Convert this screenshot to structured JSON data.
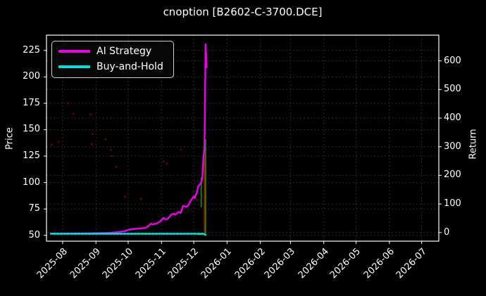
{
  "chart_data": {
    "type": "line",
    "title": "cnoption [B2602-C-3700.DCE]",
    "background_color": "#000000",
    "text_color": "#ffffff",
    "spine_color": "#ffffff",
    "grid": {
      "show": true,
      "color": "#2e2e2e",
      "style": "dashed"
    },
    "x_range": [
      "2025-07-17",
      "2026-07-17"
    ],
    "x_ticks": [
      {
        "date": "2025-08-01",
        "label": "2025-08"
      },
      {
        "date": "2025-09-01",
        "label": "2025-09"
      },
      {
        "date": "2025-10-01",
        "label": "2025-10"
      },
      {
        "date": "2025-11-01",
        "label": "2025-11"
      },
      {
        "date": "2025-12-01",
        "label": "2025-12"
      },
      {
        "date": "2026-01-01",
        "label": "2026-01"
      },
      {
        "date": "2026-02-01",
        "label": "2026-02"
      },
      {
        "date": "2026-03-01",
        "label": "2026-03"
      },
      {
        "date": "2026-04-01",
        "label": "2026-04"
      },
      {
        "date": "2026-05-01",
        "label": "2026-05"
      },
      {
        "date": "2026-06-01",
        "label": "2026-06"
      },
      {
        "date": "2026-07-01",
        "label": "2026-07"
      }
    ],
    "left_axis": {
      "label": "Price",
      "ticks": [
        50,
        75,
        100,
        125,
        150,
        175,
        200,
        225
      ],
      "range": [
        44.5,
        239.5
      ]
    },
    "right_axis": {
      "label": "Return",
      "ticks": [
        0,
        100,
        200,
        300,
        400,
        500,
        600
      ],
      "range": [
        -30,
        690
      ]
    },
    "legend": {
      "position": "upper-left",
      "items": [
        {
          "label": "AI Strategy",
          "color": "#ee00ee"
        },
        {
          "label": "Buy-and-Hold",
          "color": "#00e0e0"
        }
      ]
    },
    "series": [
      {
        "name": "AI Strategy",
        "color": "#ee00ee",
        "width": 2.4,
        "axis": "left",
        "points": [
          [
            "2025-07-21",
            51.6
          ],
          [
            "2025-08-20",
            51.8
          ],
          [
            "2025-09-01",
            52.0
          ],
          [
            "2025-09-12",
            52.3
          ],
          [
            "2025-09-22",
            53.0
          ],
          [
            "2025-09-28",
            54.0
          ],
          [
            "2025-10-02",
            55.5
          ],
          [
            "2025-10-08",
            56.2
          ],
          [
            "2025-10-14",
            56.6
          ],
          [
            "2025-10-17",
            57.2
          ],
          [
            "2025-10-20",
            58.8
          ],
          [
            "2025-10-22",
            61.0
          ],
          [
            "2025-10-24",
            60.3
          ],
          [
            "2025-10-28",
            61.5
          ],
          [
            "2025-10-31",
            63.5
          ],
          [
            "2025-11-03",
            66.5
          ],
          [
            "2025-11-05",
            65.2
          ],
          [
            "2025-11-07",
            65.8
          ],
          [
            "2025-11-10",
            69.5
          ],
          [
            "2025-11-12",
            70.6
          ],
          [
            "2025-11-14",
            69.6
          ],
          [
            "2025-11-17",
            72.2
          ],
          [
            "2025-11-19",
            71.2
          ],
          [
            "2025-11-21",
            78.0
          ],
          [
            "2025-11-24",
            77.0
          ],
          [
            "2025-11-26",
            78.5
          ],
          [
            "2025-11-28",
            82.5
          ],
          [
            "2025-12-01",
            86.8
          ],
          [
            "2025-12-02",
            85.2
          ],
          [
            "2025-12-03",
            88.5
          ],
          [
            "2025-12-04",
            90.0
          ],
          [
            "2025-12-05",
            96.0
          ],
          [
            "2025-12-08",
            100.0
          ],
          [
            "2025-12-09",
            104.5
          ],
          [
            "2025-12-10",
            124.0
          ],
          [
            "2025-12-11",
            132.0
          ],
          [
            "2025-12-12",
            229.0
          ],
          [
            "2025-12-12",
            231.0
          ],
          [
            "2025-12-13",
            211.0
          ],
          [
            "2025-12-13",
            209.0
          ]
        ]
      },
      {
        "name": "Buy-and-Hold",
        "color": "#00e0e0",
        "width": 2.4,
        "axis": "left",
        "points": [
          [
            "2025-07-21",
            51.5
          ],
          [
            "2025-12-10",
            51.5
          ],
          [
            "2025-12-12",
            50.3
          ]
        ]
      }
    ],
    "scatter": [
      {
        "name": "sparse-trade-dots",
        "color": "#6e0000",
        "radius": 1.4,
        "points": [
          [
            "2025-07-22",
            136.0
          ],
          [
            "2025-07-28",
            138.5
          ],
          [
            "2025-08-06",
            175.0
          ],
          [
            "2025-08-11",
            165.0
          ],
          [
            "2025-08-27",
            164.5
          ],
          [
            "2025-08-28",
            136.5
          ],
          [
            "2025-08-29",
            146.0
          ],
          [
            "2025-09-10",
            141.0
          ],
          [
            "2025-09-15",
            131.0
          ],
          [
            "2025-09-16",
            125.0
          ],
          [
            "2025-09-20",
            115.0
          ],
          [
            "2025-09-28",
            86.5
          ],
          [
            "2025-10-13",
            84.5
          ],
          [
            "2025-11-03",
            120.0
          ],
          [
            "2025-11-06",
            118.0
          ],
          [
            "2025-11-19",
            131.0
          ],
          [
            "2025-12-04",
            83.5
          ]
        ]
      }
    ],
    "vlines": [
      {
        "color": "#00a000",
        "date": "2025-12-08",
        "from": 76.5,
        "to": 105.0,
        "width": 1.6
      },
      {
        "color": "#d40000",
        "date": "2025-12-11",
        "from": 50.5,
        "to": 135.0,
        "width": 1.6
      },
      {
        "color": "#00a000",
        "date": "2025-12-12",
        "from": 50.0,
        "to": 141.0,
        "width": 1.6
      }
    ],
    "segments": [
      {
        "color": "#00a000",
        "from": [
          "2025-12-04",
          51.2
        ],
        "to": [
          "2025-12-12",
          51.2
        ],
        "width": 2.4
      }
    ]
  }
}
